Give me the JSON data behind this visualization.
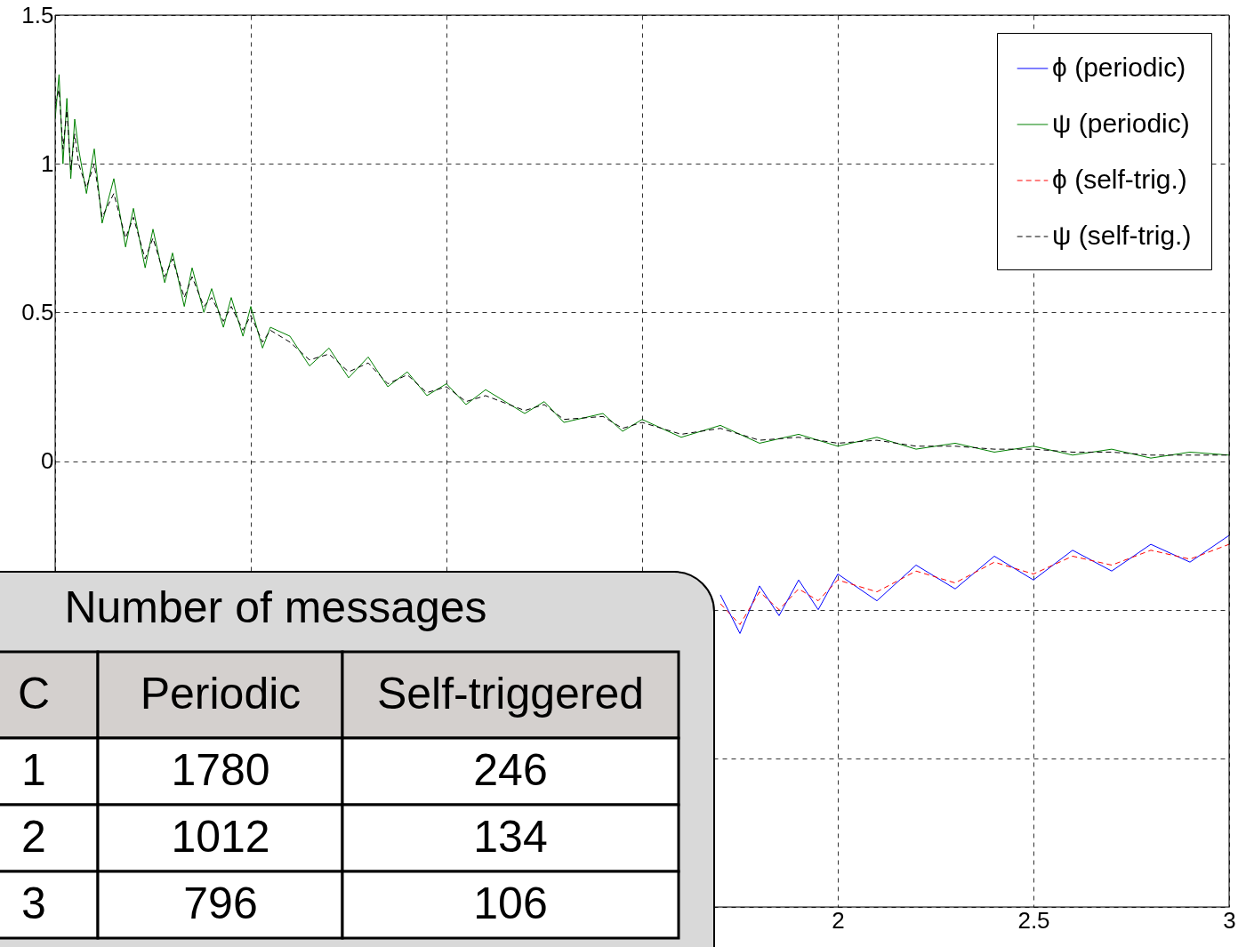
{
  "chart_data": {
    "type": "line",
    "xlim": [
      0,
      3
    ],
    "ylim": [
      -1.5,
      1.5
    ],
    "xticks": [
      {
        "value": 0,
        "label": null
      },
      {
        "value": 0.5,
        "label": null
      },
      {
        "value": 1,
        "label": null
      },
      {
        "value": 1.5,
        "label": null
      },
      2,
      2.5,
      3
    ],
    "yticks": [
      {
        "value": -1.5,
        "label": null
      },
      {
        "value": -1,
        "label": null
      },
      {
        "value": -0.5,
        "label": null
      },
      0,
      0.5,
      1,
      1.5
    ],
    "grid": true,
    "legend": "top right",
    "series": [
      {
        "name": "ϕ (periodic)",
        "color": "#0000ff",
        "line_style": "solid",
        "x": [
          1.7,
          1.75,
          1.8,
          1.85,
          1.9,
          1.95,
          2.0,
          2.1,
          2.2,
          2.3,
          2.4,
          2.5,
          2.6,
          2.7,
          2.8,
          2.9,
          3.0
        ],
        "values": [
          -0.45,
          -0.58,
          -0.42,
          -0.52,
          -0.4,
          -0.5,
          -0.38,
          -0.47,
          -0.35,
          -0.43,
          -0.32,
          -0.4,
          -0.3,
          -0.37,
          -0.28,
          -0.34,
          -0.25
        ]
      },
      {
        "name": "ψ (periodic)",
        "color": "#008000",
        "line_style": "solid",
        "x": [
          0,
          0.01,
          0.02,
          0.03,
          0.04,
          0.05,
          0.06,
          0.08,
          0.1,
          0.12,
          0.15,
          0.18,
          0.2,
          0.23,
          0.25,
          0.28,
          0.3,
          0.33,
          0.35,
          0.38,
          0.4,
          0.43,
          0.45,
          0.48,
          0.5,
          0.53,
          0.55,
          0.6,
          0.65,
          0.7,
          0.75,
          0.8,
          0.85,
          0.9,
          0.95,
          1.0,
          1.05,
          1.1,
          1.2,
          1.25,
          1.3,
          1.4,
          1.45,
          1.5,
          1.6,
          1.7,
          1.8,
          1.9,
          2.0,
          2.1,
          2.2,
          2.3,
          2.4,
          2.5,
          2.6,
          2.7,
          2.8,
          2.9,
          3.0
        ],
        "values": [
          1.15,
          1.3,
          1.0,
          1.22,
          0.95,
          1.15,
          1.05,
          0.9,
          1.05,
          0.8,
          0.95,
          0.72,
          0.85,
          0.65,
          0.78,
          0.6,
          0.7,
          0.52,
          0.65,
          0.5,
          0.58,
          0.45,
          0.55,
          0.42,
          0.52,
          0.38,
          0.45,
          0.42,
          0.32,
          0.38,
          0.28,
          0.35,
          0.25,
          0.3,
          0.22,
          0.26,
          0.19,
          0.24,
          0.16,
          0.2,
          0.13,
          0.16,
          0.1,
          0.14,
          0.08,
          0.12,
          0.06,
          0.09,
          0.05,
          0.08,
          0.04,
          0.06,
          0.03,
          0.05,
          0.02,
          0.04,
          0.01,
          0.03,
          0.02
        ]
      },
      {
        "name": "ϕ (self-trig.)",
        "color": "#ff0000",
        "line_style": "dashed",
        "x": [
          1.7,
          1.75,
          1.8,
          1.85,
          1.9,
          1.95,
          2.0,
          2.1,
          2.2,
          2.3,
          2.4,
          2.5,
          2.6,
          2.7,
          2.8,
          2.9,
          3.0
        ],
        "values": [
          -0.48,
          -0.55,
          -0.44,
          -0.5,
          -0.43,
          -0.47,
          -0.4,
          -0.44,
          -0.37,
          -0.41,
          -0.34,
          -0.38,
          -0.32,
          -0.35,
          -0.3,
          -0.33,
          -0.28
        ]
      },
      {
        "name": "ψ (self-trig.)",
        "color": "#000000",
        "line_style": "dashed",
        "x": [
          0,
          0.01,
          0.02,
          0.03,
          0.04,
          0.05,
          0.06,
          0.08,
          0.1,
          0.12,
          0.15,
          0.18,
          0.2,
          0.23,
          0.25,
          0.28,
          0.3,
          0.33,
          0.35,
          0.38,
          0.4,
          0.43,
          0.45,
          0.48,
          0.5,
          0.53,
          0.55,
          0.6,
          0.65,
          0.7,
          0.75,
          0.8,
          0.85,
          0.9,
          0.95,
          1.0,
          1.05,
          1.1,
          1.2,
          1.25,
          1.3,
          1.4,
          1.45,
          1.5,
          1.6,
          1.7,
          1.8,
          1.9,
          2.0,
          2.1,
          2.2,
          2.3,
          2.4,
          2.5,
          2.6,
          2.7,
          2.8,
          2.9,
          3.0
        ],
        "values": [
          1.2,
          1.25,
          1.05,
          1.18,
          0.98,
          1.1,
          1.0,
          0.92,
          1.0,
          0.82,
          0.9,
          0.75,
          0.82,
          0.68,
          0.75,
          0.62,
          0.68,
          0.55,
          0.62,
          0.52,
          0.55,
          0.47,
          0.52,
          0.44,
          0.49,
          0.4,
          0.44,
          0.4,
          0.34,
          0.36,
          0.3,
          0.33,
          0.26,
          0.29,
          0.23,
          0.25,
          0.2,
          0.22,
          0.17,
          0.19,
          0.14,
          0.15,
          0.11,
          0.13,
          0.09,
          0.11,
          0.07,
          0.08,
          0.06,
          0.07,
          0.05,
          0.05,
          0.04,
          0.04,
          0.03,
          0.03,
          0.02,
          0.02,
          0.02
        ]
      }
    ],
    "annotations": [
      "Number of messages",
      "C",
      "Periodic",
      "Self-triggered",
      "1",
      "1780",
      "246",
      "2",
      "1012",
      "134",
      "3",
      "796",
      "106"
    ]
  }
}
